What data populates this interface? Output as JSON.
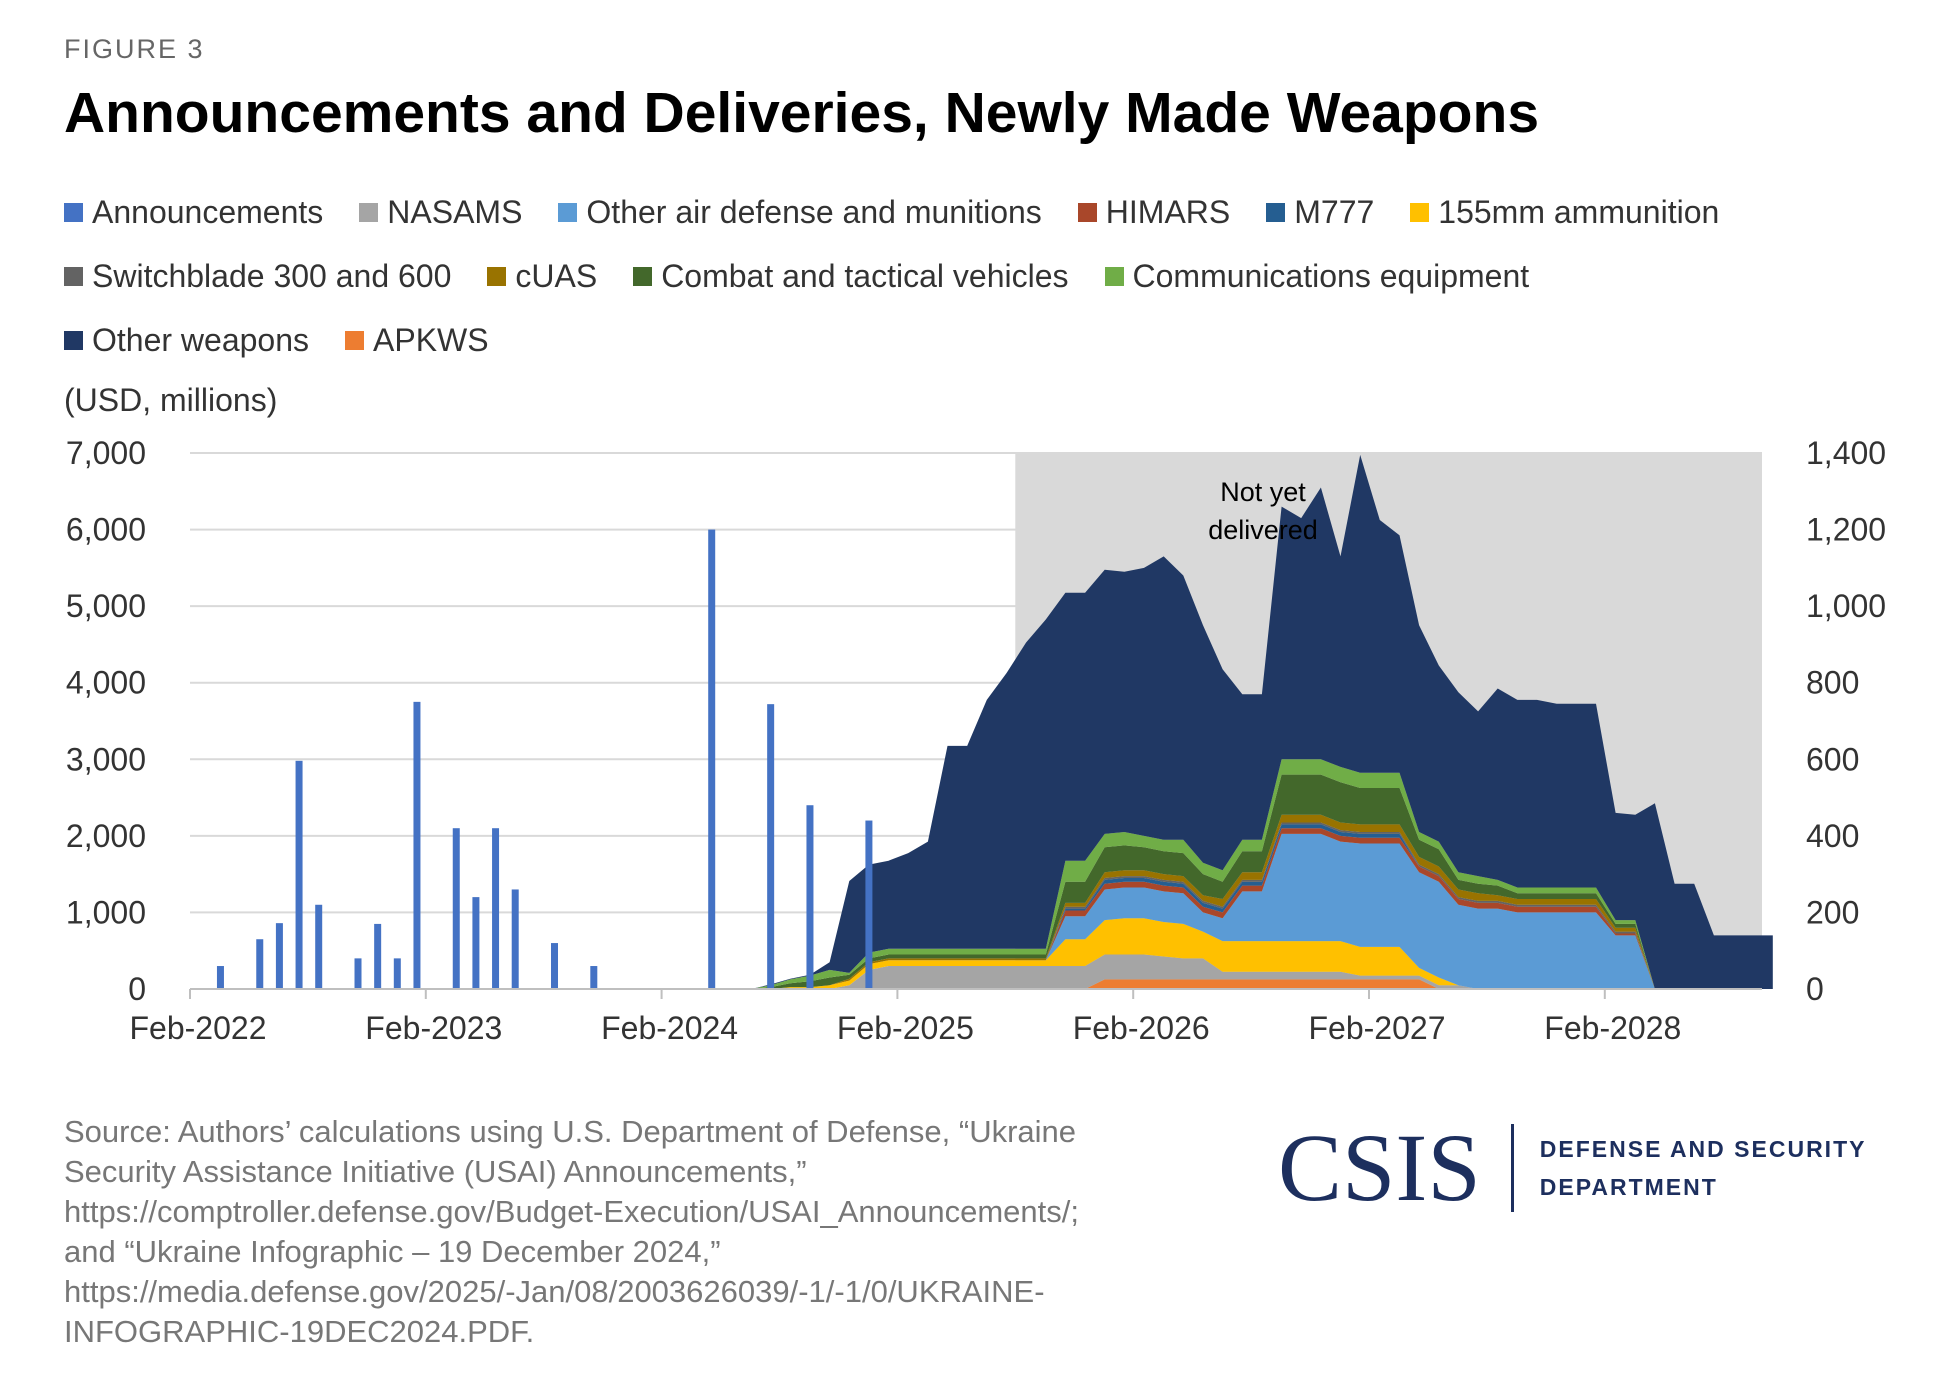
{
  "figure_label": "FIGURE 3",
  "title": "Announcements and Deliveries, Newly Made Weapons",
  "unit_label": "(USD, millions)",
  "annotation": "Not yet delivered",
  "source": "Source: Authors’ calculations using U.S. Department of Defense, “Ukraine Security Assistance Initiative (USAI) Announcements,” https://comptroller.defense.gov/Budget-Execution/USAI_Announcements/; and “Ukraine Infographic – 19 December 2024,” https://media.defense.gov/2025/-Jan/08/2003626039/-1/-1/0/UKRAINE-INFOGRAPHIC-19DEC2024.PDF.",
  "logo": {
    "word": "CSIS",
    "dept_line1": "DEFENSE AND SECURITY",
    "dept_line2": "DEPARTMENT"
  },
  "legend": [
    [
      {
        "label": "Announcements",
        "color": "#4472c4"
      },
      {
        "label": "NASAMS",
        "color": "#a5a5a5"
      },
      {
        "label": "Other air defense and munitions",
        "color": "#5b9bd5"
      },
      {
        "label": "HIMARS",
        "color": "#a9472a"
      },
      {
        "label": "M777",
        "color": "#255e91"
      },
      {
        "label": "155mm ammunition",
        "color": "#ffc000"
      }
    ],
    [
      {
        "label": "Switchblade 300 and 600",
        "color": "#636363"
      },
      {
        "label": "cUAS",
        "color": "#997300"
      },
      {
        "label": "Combat and tactical vehicles",
        "color": "#43682b"
      },
      {
        "label": "Communications equipment",
        "color": "#70ad47"
      }
    ],
    [
      {
        "label": "Other weapons",
        "color": "#203864"
      },
      {
        "label": "APKWS",
        "color": "#ed7d31"
      }
    ]
  ],
  "chart_data": {
    "type": "bar+stacked-area",
    "x_ticks": [
      "Feb-2022",
      "Feb-2023",
      "Feb-2024",
      "Feb-2025",
      "Feb-2026",
      "Feb-2027",
      "Feb-2028"
    ],
    "x_range_months": [
      "2022-02",
      "2028-10"
    ],
    "left_axis": {
      "label": "(USD, millions)",
      "ticks": [
        "0",
        "1,000",
        "2,000",
        "3,000",
        "4,000",
        "5,000",
        "6,000",
        "7,000"
      ],
      "range": [
        0,
        7000
      ]
    },
    "right_axis": {
      "ticks": [
        "0",
        "200",
        "400",
        "600",
        "800",
        "1,000",
        "1,200",
        "1,400"
      ],
      "range": [
        0,
        1400
      ]
    },
    "shaded_region": {
      "from": "2025-08",
      "to": "2028-10",
      "label": "Not yet delivered",
      "color": "#d9d9d9"
    },
    "announcements": {
      "axis": "left",
      "color": "#4472c4",
      "points": [
        [
          "2022-03",
          300
        ],
        [
          "2022-05",
          650
        ],
        [
          "2022-06",
          860
        ],
        [
          "2022-07",
          2980
        ],
        [
          "2022-08",
          1100
        ],
        [
          "2022-10",
          400
        ],
        [
          "2022-11",
          850
        ],
        [
          "2022-12",
          400
        ],
        [
          "2023-01",
          3750
        ],
        [
          "2023-03",
          2100
        ],
        [
          "2023-04",
          1200
        ],
        [
          "2023-05",
          2100
        ],
        [
          "2023-06",
          1300
        ],
        [
          "2023-08",
          600
        ],
        [
          "2023-10",
          300
        ],
        [
          "2024-04",
          6000
        ],
        [
          "2024-07",
          3720
        ],
        [
          "2024-09",
          2400
        ],
        [
          "2024-12",
          2200
        ]
      ]
    },
    "deliveries": {
      "axis": "right",
      "stack_order": [
        "APKWS",
        "NASAMS",
        "155mm ammunition",
        "Other air defense and munitions",
        "HIMARS",
        "M777",
        "Switchblade 300 and 600",
        "cUAS",
        "Combat and tactical vehicles",
        "Communications equipment",
        "Other weapons"
      ],
      "months": [
        "2024-06",
        "2024-07",
        "2024-08",
        "2024-09",
        "2024-10",
        "2024-11",
        "2024-12",
        "2025-01",
        "2025-02",
        "2025-03",
        "2025-04",
        "2025-05",
        "2025-06",
        "2025-07",
        "2025-08",
        "2025-09",
        "2025-10",
        "2025-11",
        "2025-12",
        "2026-01",
        "2026-02",
        "2026-03",
        "2026-04",
        "2026-05",
        "2026-06",
        "2026-07",
        "2026-08",
        "2026-09",
        "2026-10",
        "2026-11",
        "2026-12",
        "2027-01",
        "2027-02",
        "2027-03",
        "2027-04",
        "2027-05",
        "2027-06",
        "2027-07",
        "2027-08",
        "2027-09",
        "2027-10",
        "2027-11",
        "2027-12",
        "2028-01",
        "2028-02",
        "2028-03",
        "2028-04",
        "2028-05",
        "2028-06",
        "2028-07",
        "2028-08",
        "2028-09",
        "2028-10"
      ],
      "series": [
        {
          "name": "APKWS",
          "color": "#ed7d31",
          "values": [
            0,
            0,
            0,
            0,
            0,
            0,
            0,
            0,
            0,
            0,
            0,
            0,
            0,
            0,
            0,
            0,
            0,
            0,
            25,
            25,
            25,
            25,
            25,
            25,
            25,
            25,
            25,
            25,
            25,
            25,
            25,
            25,
            25,
            25,
            25,
            0,
            0,
            0,
            0,
            0,
            0,
            0,
            0,
            0,
            0,
            0,
            0,
            0,
            0,
            0,
            0,
            0,
            0
          ]
        },
        {
          "name": "NASAMS",
          "color": "#a5a5a5",
          "values": [
            0,
            0,
            0,
            0,
            0,
            10,
            50,
            60,
            60,
            60,
            60,
            60,
            60,
            60,
            60,
            60,
            60,
            60,
            65,
            65,
            65,
            60,
            55,
            55,
            20,
            20,
            20,
            20,
            20,
            20,
            20,
            10,
            10,
            10,
            10,
            10,
            10,
            0,
            0,
            0,
            0,
            0,
            0,
            0,
            0,
            0,
            0,
            0,
            0,
            0,
            0,
            0,
            0
          ]
        },
        {
          "name": "155mm ammunition",
          "color": "#ffc000",
          "values": [
            0,
            0,
            5,
            5,
            10,
            12,
            15,
            15,
            15,
            15,
            15,
            15,
            15,
            15,
            15,
            15,
            70,
            70,
            90,
            95,
            95,
            90,
            90,
            70,
            80,
            80,
            80,
            80,
            80,
            80,
            80,
            75,
            75,
            75,
            20,
            20,
            0,
            0,
            0,
            0,
            0,
            0,
            0,
            0,
            0,
            0,
            0,
            0,
            0,
            0,
            0,
            0,
            0
          ]
        },
        {
          "name": "Other air defense and munitions",
          "color": "#5b9bd5",
          "values": [
            0,
            0,
            0,
            0,
            0,
            0,
            0,
            0,
            0,
            0,
            0,
            0,
            0,
            0,
            0,
            0,
            60,
            60,
            80,
            80,
            80,
            80,
            80,
            50,
            60,
            130,
            130,
            280,
            280,
            280,
            260,
            270,
            270,
            270,
            250,
            250,
            210,
            210,
            210,
            200,
            200,
            200,
            200,
            200,
            140,
            140,
            0,
            0,
            0,
            0,
            0,
            0,
            0
          ]
        },
        {
          "name": "HIMARS",
          "color": "#a9472a",
          "values": [
            0,
            0,
            0,
            0,
            0,
            0,
            0,
            0,
            0,
            0,
            0,
            0,
            0,
            0,
            0,
            0,
            15,
            15,
            15,
            15,
            15,
            15,
            15,
            15,
            15,
            15,
            15,
            15,
            15,
            15,
            15,
            15,
            15,
            15,
            15,
            15,
            15,
            15,
            15,
            15,
            15,
            15,
            15,
            15,
            5,
            5,
            0,
            0,
            0,
            0,
            0,
            0,
            0
          ]
        },
        {
          "name": "M777",
          "color": "#255e91",
          "values": [
            0,
            0,
            0,
            0,
            0,
            0,
            0,
            0,
            0,
            0,
            0,
            0,
            0,
            0,
            0,
            0,
            5,
            5,
            10,
            10,
            10,
            10,
            10,
            10,
            10,
            10,
            10,
            10,
            10,
            10,
            10,
            10,
            10,
            10,
            0,
            0,
            0,
            0,
            0,
            0,
            0,
            0,
            0,
            0,
            0,
            0,
            0,
            0,
            0,
            0,
            0,
            0,
            0
          ]
        },
        {
          "name": "Switchblade 300 and 600",
          "color": "#636363",
          "values": [
            0,
            0,
            0,
            0,
            0,
            0,
            0,
            0,
            0,
            0,
            0,
            0,
            0,
            0,
            0,
            0,
            5,
            5,
            5,
            5,
            5,
            5,
            5,
            5,
            5,
            5,
            5,
            5,
            5,
            5,
            5,
            5,
            5,
            5,
            5,
            5,
            5,
            5,
            5,
            5,
            5,
            5,
            5,
            5,
            5,
            5,
            0,
            0,
            0,
            0,
            0,
            0,
            0
          ]
        },
        {
          "name": "cUAS",
          "color": "#997300",
          "values": [
            0,
            0,
            0,
            0,
            0,
            5,
            5,
            5,
            5,
            5,
            5,
            5,
            5,
            5,
            5,
            5,
            10,
            10,
            15,
            15,
            15,
            15,
            15,
            15,
            20,
            20,
            20,
            20,
            20,
            20,
            20,
            20,
            20,
            20,
            20,
            20,
            20,
            20,
            15,
            15,
            15,
            15,
            15,
            15,
            10,
            10,
            0,
            0,
            0,
            0,
            0,
            0,
            0
          ]
        },
        {
          "name": "Combat and tactical vehicles",
          "color": "#43682b",
          "values": [
            0,
            5,
            10,
            15,
            20,
            10,
            10,
            10,
            10,
            10,
            10,
            10,
            10,
            10,
            10,
            10,
            55,
            55,
            65,
            65,
            60,
            60,
            60,
            55,
            45,
            55,
            55,
            105,
            105,
            105,
            105,
            95,
            95,
            95,
            45,
            45,
            25,
            25,
            25,
            15,
            15,
            15,
            15,
            15,
            10,
            10,
            0,
            0,
            0,
            0,
            0,
            0,
            0
          ]
        },
        {
          "name": "Communications equipment",
          "color": "#70ad47",
          "values": [
            0,
            5,
            10,
            15,
            20,
            5,
            15,
            15,
            15,
            15,
            15,
            15,
            15,
            15,
            15,
            15,
            55,
            55,
            35,
            35,
            30,
            30,
            35,
            30,
            30,
            30,
            30,
            40,
            40,
            40,
            40,
            40,
            40,
            40,
            20,
            20,
            20,
            20,
            15,
            15,
            15,
            15,
            15,
            15,
            10,
            10,
            0,
            0,
            0,
            0,
            0,
            0,
            0
          ]
        },
        {
          "name": "Other weapons",
          "color": "#203864",
          "values": [
            0,
            2,
            2,
            2,
            20,
            240,
            230,
            230,
            250,
            280,
            530,
            530,
            650,
            720,
            800,
            860,
            700,
            700,
            690,
            680,
            700,
            740,
            690,
            620,
            525,
            380,
            380,
            660,
            630,
            710,
            550,
            830,
            660,
            620,
            540,
            460,
            470,
            430,
            500,
            490,
            490,
            480,
            480,
            480,
            280,
            275,
            485,
            275,
            275,
            140,
            140,
            140,
            140
          ]
        }
      ]
    }
  }
}
